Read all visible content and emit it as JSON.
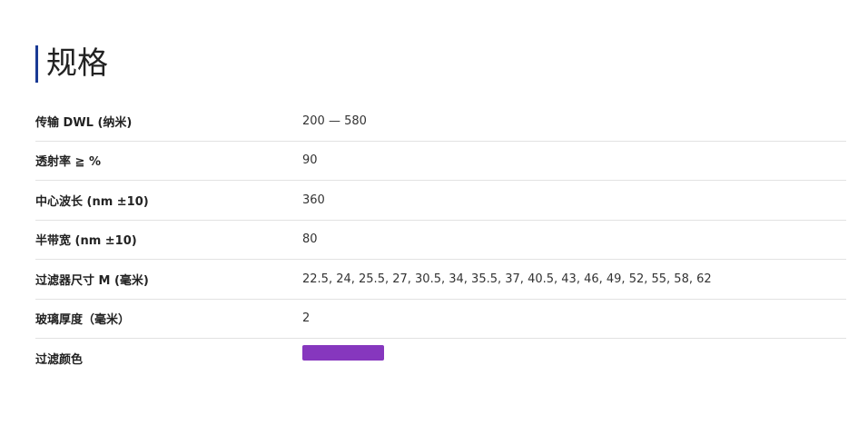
{
  "title": "规格",
  "accent_color": "#1a3a94",
  "specs": [
    {
      "label": "传输 DWL (纳米)",
      "value": "200 — 580"
    },
    {
      "label": "透射率 ≧ %",
      "value": "90"
    },
    {
      "label": "中心波长 (nm ±10)",
      "value": "360"
    },
    {
      "label": "半带宽 (nm ±10)",
      "value": "80"
    },
    {
      "label": "过滤器尺寸 M (毫米)",
      "value": "22.5, 24, 25.5, 27, 30.5, 34, 35.5, 37, 40.5, 43, 46, 49, 52, 55, 58, 62"
    },
    {
      "label": "玻璃厚度（毫米）",
      "value": "2"
    },
    {
      "label": "过滤颜色",
      "color": "#8637be"
    }
  ]
}
